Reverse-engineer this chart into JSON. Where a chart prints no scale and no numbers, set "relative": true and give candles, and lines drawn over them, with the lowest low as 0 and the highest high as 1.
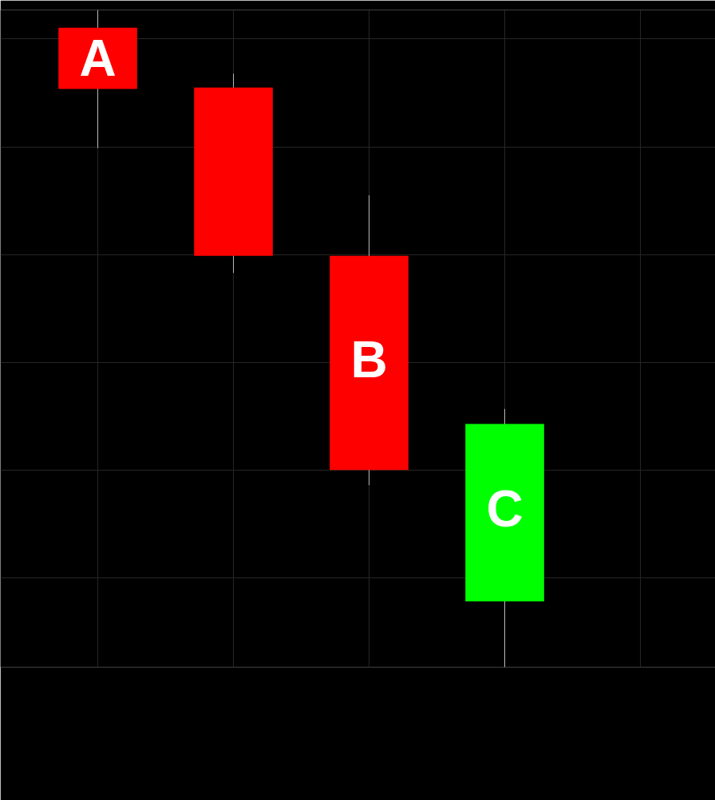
{
  "chart_data": {
    "type": "candlestick",
    "relative": true,
    "categories": [
      null,
      null,
      null,
      null
    ],
    "ohlc": [
      [
        0.973,
        1,
        0.79,
        0.88
      ],
      [
        0.882,
        0.903,
        0.6,
        0.626
      ],
      [
        0.626,
        0.718,
        0.277,
        0.3
      ],
      [
        0.1,
        0.393,
        0,
        0.37
      ]
    ],
    "colors": [
      "#ff0000",
      "#ff0000",
      "#ff0000",
      "#00ff00"
    ],
    "grid": true,
    "annotations": [
      {
        "text": "A",
        "y": 0.927
      },
      {
        "text": "B",
        "y": 0.468
      },
      {
        "text": "C",
        "y": 0.241
      }
    ]
  }
}
